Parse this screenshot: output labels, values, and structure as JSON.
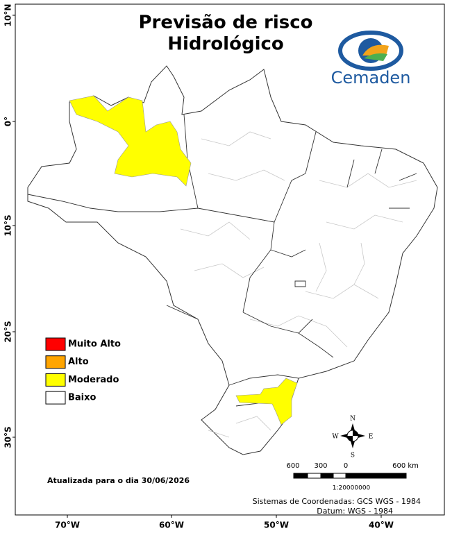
{
  "header": {
    "title_line1": "Previsão de risco",
    "title_line2": "Hidrológico",
    "logo": "Cemaden"
  },
  "legend": [
    {
      "label": "Muito Alto",
      "color": "#ff0000"
    },
    {
      "label": "Alto",
      "color": "#ffa500"
    },
    {
      "label": "Moderado",
      "color": "#ffff00"
    },
    {
      "label": "Baixo",
      "color": "#ffffff"
    }
  ],
  "axes": {
    "latitude": [
      "10°N",
      "0°",
      "10°S",
      "20°S",
      "30°S"
    ],
    "longitude": [
      "70°W",
      "60°W",
      "50°W",
      "40°W"
    ]
  },
  "compass": {
    "north": "N",
    "south": "S",
    "east": "E",
    "west": "W"
  },
  "scale_bar": {
    "labels": [
      "600",
      "300",
      "0",
      "600 km"
    ],
    "ratio": "1:20000000"
  },
  "footer": {
    "updated": "Atualizada para o dia 30/06/2026",
    "crs": "Sistemas de Coordenadas: GCS WGS - 1984",
    "datum": "Datum: WGS - 1984"
  }
}
